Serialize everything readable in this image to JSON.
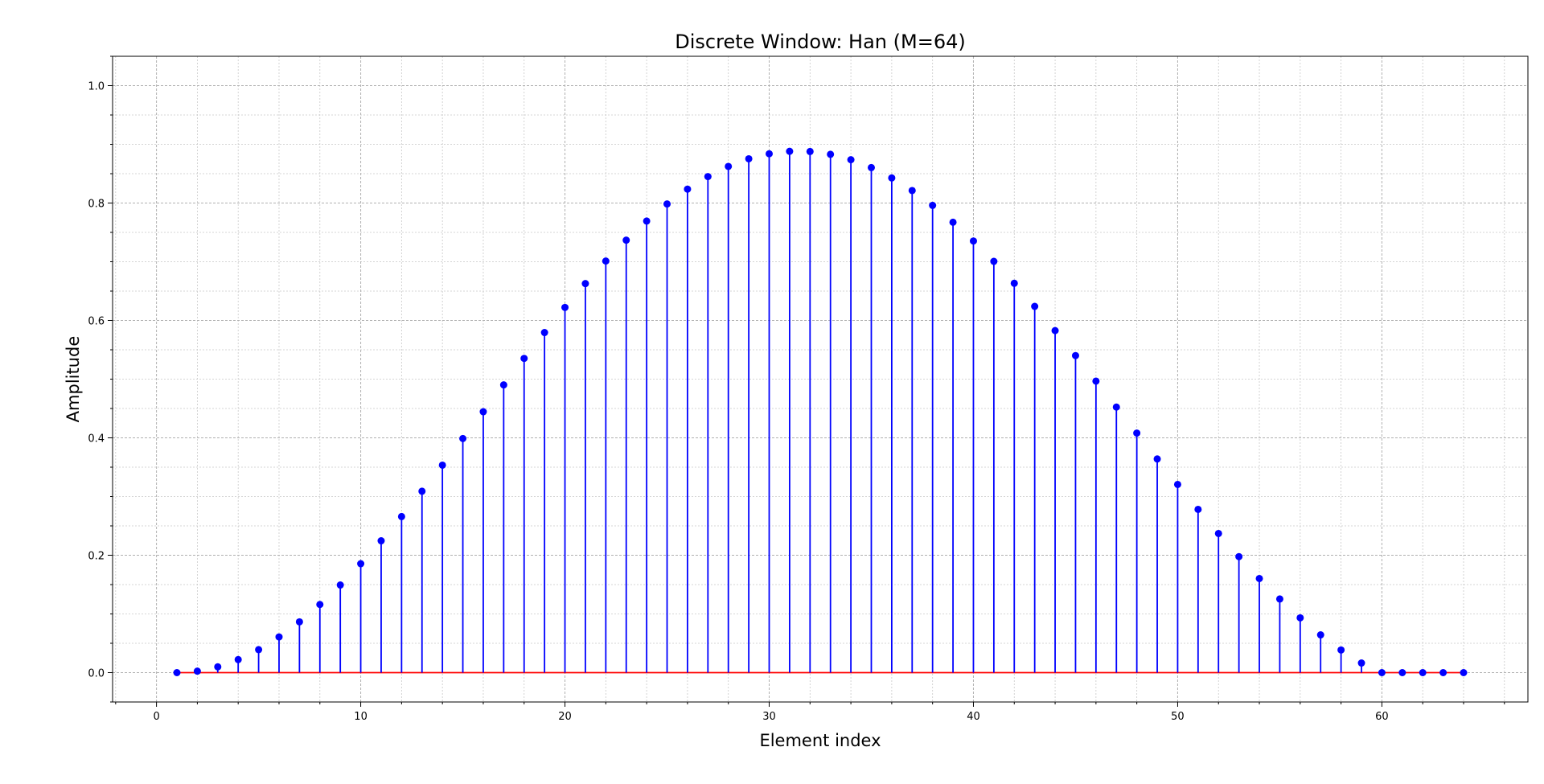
{
  "chart_data": {
    "type": "stem",
    "title": "Discrete Window: Han (M=64)",
    "xlabel": "Element index",
    "ylabel": "Amplitude",
    "xlim": [
      -2.15,
      67.15
    ],
    "ylim": [
      -0.05,
      1.05
    ],
    "xticks": [
      0,
      10,
      20,
      30,
      40,
      50,
      60
    ],
    "yticks": [
      0.0,
      0.2,
      0.4,
      0.6,
      0.8,
      1.0
    ],
    "ytick_labels": [
      "0.0",
      "0.2",
      "0.4",
      "0.6",
      "0.8",
      "1.0"
    ],
    "grid": true,
    "colors": {
      "stem": "#0000ff",
      "marker": "#0000ff",
      "baseline": "#ff0000"
    },
    "series": [
      {
        "x": [
          1,
          2,
          3,
          4,
          5,
          6,
          7,
          8,
          9,
          10,
          11,
          12,
          13,
          14,
          15,
          16,
          17,
          18,
          19,
          20,
          21,
          22,
          23,
          24,
          25,
          26,
          27,
          28,
          29,
          30,
          31,
          32,
          33,
          34,
          35,
          36,
          37,
          38,
          39,
          40,
          41,
          42,
          43,
          44,
          45,
          46,
          47,
          48,
          49,
          50,
          51,
          52,
          53,
          54,
          55,
          56,
          57,
          58,
          59,
          60,
          61,
          62,
          63,
          64
        ],
        "values": [
          0.0,
          0.0025,
          0.0099,
          0.0222,
          0.0392,
          0.0608,
          0.0865,
          0.1161,
          0.1493,
          0.1856,
          0.2246,
          0.2659,
          0.309,
          0.3535,
          0.3988,
          0.4445,
          0.4902,
          0.5353,
          0.5794,
          0.6221,
          0.6628,
          0.7012,
          0.7368,
          0.7693,
          0.7984,
          0.8237,
          0.8451,
          0.8624,
          0.8754,
          0.8839,
          0.8881,
          0.8878,
          0.883,
          0.8738,
          0.8604,
          0.8428,
          0.8213,
          0.796,
          0.7673,
          0.7353,
          0.7006,
          0.6633,
          0.6239,
          0.5827,
          0.5401,
          0.4966,
          0.4524,
          0.4081,
          0.364,
          0.3206,
          0.2781,
          0.237,
          0.1976,
          0.1603,
          0.1255,
          0.0934,
          0.0643,
          0.0386,
          0.0164,
          0.0,
          0.0,
          0.0,
          0.0,
          0.0
        ]
      }
    ]
  }
}
